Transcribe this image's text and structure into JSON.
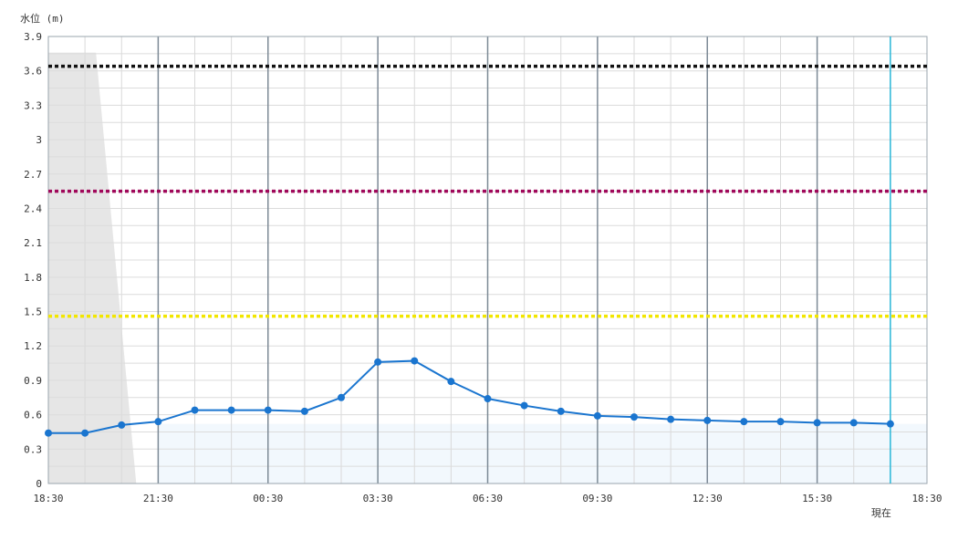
{
  "chart_data": {
    "type": "line",
    "ylabel": "水位 (m)",
    "ylim": [
      0,
      3.9
    ],
    "y_ticks": [
      "0",
      "0.3",
      "0.6",
      "0.9",
      "1.2",
      "1.5",
      "1.8",
      "2.1",
      "2.4",
      "2.7",
      "3",
      "3.3",
      "3.6",
      "3.9"
    ],
    "x_ticks": [
      "18:30",
      "21:30",
      "00:30",
      "03:30",
      "06:30",
      "09:30",
      "12:30",
      "15:30",
      "18:30"
    ],
    "x_range_hours": [
      0,
      24
    ],
    "now_label": "現在",
    "now_hour": 23,
    "grid": true,
    "series": [
      {
        "x": [
          0,
          1,
          2,
          3,
          4,
          5,
          6,
          7,
          8,
          9,
          10,
          11,
          12,
          13,
          14,
          15,
          16,
          17,
          18,
          19,
          20,
          21,
          22,
          23
        ],
        "values": [
          0.44,
          0.44,
          0.51,
          0.54,
          0.64,
          0.64,
          0.64,
          0.63,
          0.75,
          1.06,
          1.07,
          0.89,
          0.74,
          0.68,
          0.63,
          0.59,
          0.58,
          0.56,
          0.55,
          0.54,
          0.54,
          0.53,
          0.53,
          0.52
        ],
        "color": "#1a75cf"
      }
    ],
    "reference_lines": [
      {
        "value": 3.64,
        "color": "#111111"
      },
      {
        "value": 2.55,
        "color": "#a0085a"
      },
      {
        "value": 1.46,
        "color": "#f2e600"
      }
    ],
    "gray_band": {
      "x": [
        0,
        1.3,
        2.4
      ],
      "top": 3.76,
      "color": "#e6e6e6"
    },
    "normal_band": {
      "top": 0.52,
      "color": "#f2f8fd"
    }
  }
}
